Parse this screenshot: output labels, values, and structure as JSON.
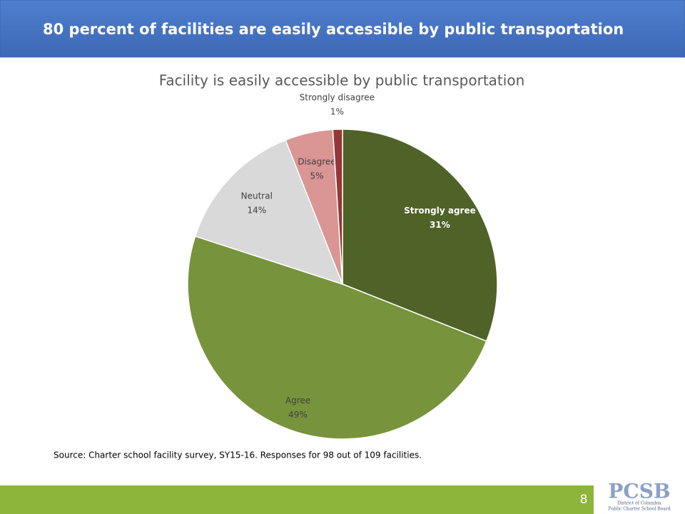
{
  "slide": {
    "title": "80 percent of facilities are easily accessible by public transportation",
    "source": "Source: Charter school facility survey, SY15-16. Responses for 98 out of 109 facilities.",
    "page_number": "8",
    "logo": {
      "mark": "PCSB",
      "line1": "District of Columbia",
      "line2": "Public Charter School Board"
    }
  },
  "chart_data": {
    "type": "pie",
    "title": "Facility is easily accessible by public transportation",
    "categories": [
      "Strongly agree",
      "Agree",
      "Neutral",
      "Disagree",
      "Strongly disagree"
    ],
    "values": [
      31,
      49,
      14,
      5,
      1
    ],
    "value_labels": [
      "31%",
      "49%",
      "14%",
      "5%",
      "1%"
    ],
    "colors": [
      "#4f6228",
      "#77933c",
      "#d9d9d9",
      "#d99694",
      "#953735"
    ]
  }
}
